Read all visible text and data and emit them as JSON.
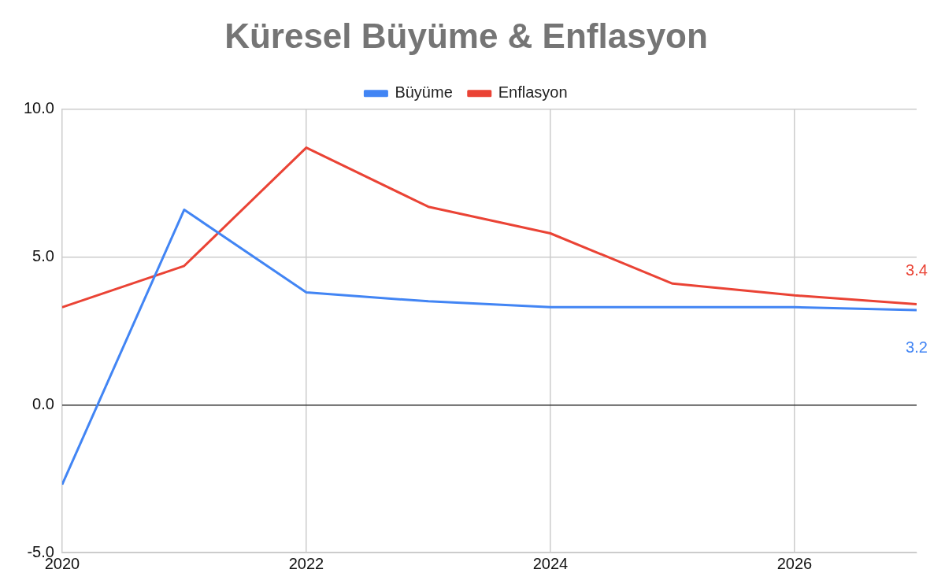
{
  "chart_data": {
    "type": "line",
    "title": "Küresel Büyüme & Enflasyon",
    "x": [
      2020,
      2021,
      2022,
      2023,
      2024,
      2025,
      2026,
      2027
    ],
    "series": [
      {
        "name": "Büyüme",
        "color": "#4285f4",
        "values": [
          -2.7,
          6.6,
          3.8,
          3.5,
          3.3,
          3.3,
          3.3,
          3.2
        ],
        "value_labels": [
          null,
          null,
          null,
          null,
          null,
          null,
          null,
          "3.2"
        ]
      },
      {
        "name": "Enflasyon",
        "color": "#ea4335",
        "values": [
          3.3,
          4.7,
          8.7,
          6.7,
          5.8,
          4.1,
          3.7,
          3.4
        ],
        "value_labels": [
          null,
          null,
          null,
          null,
          null,
          null,
          null,
          "3.4"
        ]
      }
    ],
    "xlim": [
      2020,
      2027
    ],
    "xticks": [
      2020,
      2022,
      2024,
      2026
    ],
    "ylim": [
      -5,
      10
    ],
    "yticks": [
      {
        "value": -5,
        "label": "-5.0"
      },
      {
        "value": 0,
        "label": "0.0"
      },
      {
        "value": 5,
        "label": "5.0"
      },
      {
        "value": 10,
        "label": "10.0"
      }
    ],
    "grid": true,
    "legend": "top",
    "marker": "none",
    "line_style": "solid"
  }
}
